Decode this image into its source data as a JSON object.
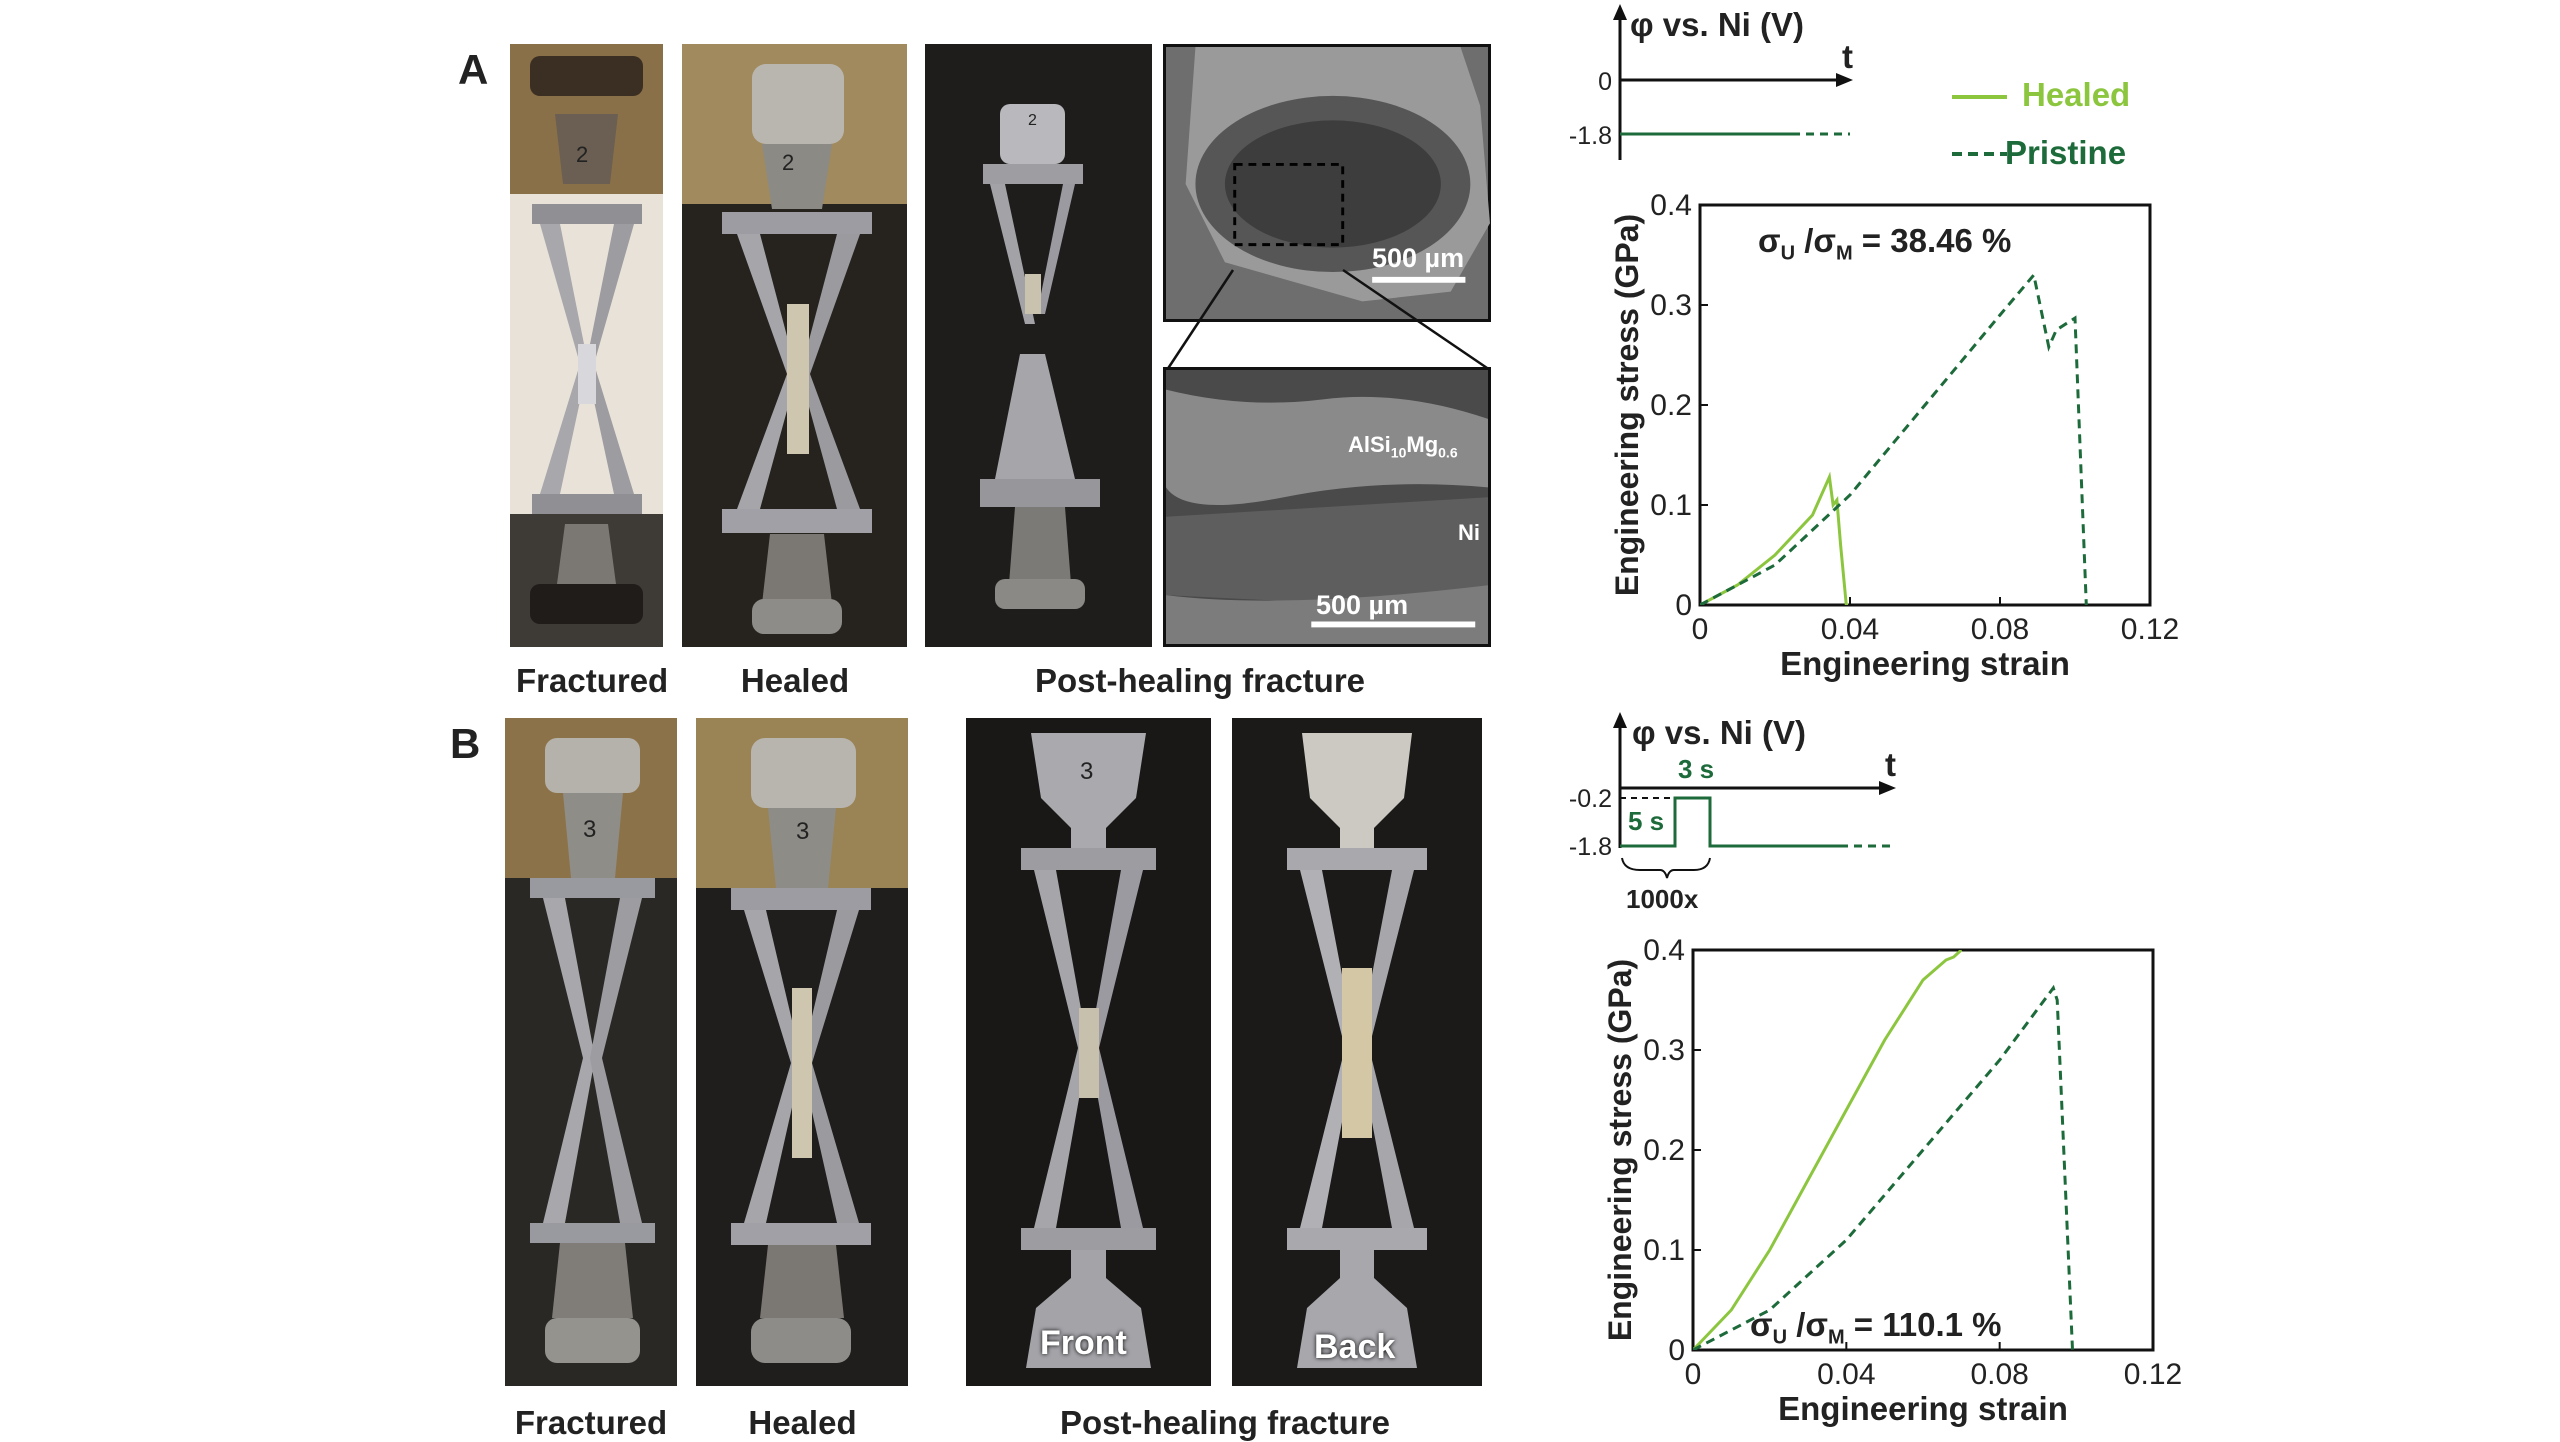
{
  "figure": {
    "panel_a": {
      "letter": "A",
      "captions": [
        "Fractured",
        "Healed",
        "Post-healing fracture"
      ],
      "sem": {
        "top_scale": "500 µm",
        "bottom_scale": "500 µm",
        "label_alloy_main": "AlSi",
        "label_alloy_sub1": "10",
        "label_alloy_mid": "Mg",
        "label_alloy_sub2": "0.6",
        "label_ni": "Ni"
      },
      "specimen_marks": [
        "2",
        "2",
        "2"
      ],
      "waveform": {
        "title": "φ vs. Ni (V)",
        "t_label": "t",
        "levels": [
          "0",
          "-1.8"
        ]
      },
      "legend": {
        "healed": "Healed",
        "pristine": "Pristine"
      },
      "ratio": {
        "sigma": "σ",
        "sub_u": "U",
        "sub_m": "M",
        "value": "= 38.46 %"
      }
    },
    "panel_b": {
      "letter": "B",
      "captions": [
        "Fractured",
        "Healed",
        "Post-healing fracture"
      ],
      "photo_labels": {
        "front": "Front",
        "back": "Back"
      },
      "specimen_marks": [
        "3",
        "3",
        "3"
      ],
      "waveform": {
        "title": "φ vs. Ni (V)",
        "t_label": "t",
        "levels": [
          "-0.2",
          "-1.8"
        ],
        "pulse_high": "3 s",
        "pulse_low": "5 s",
        "repeat": "1000x"
      },
      "ratio": {
        "sigma": "σ",
        "sub_u": "U",
        "sub_m": "M",
        "value": "= 110.1 %"
      }
    },
    "colors": {
      "healed": "#8cc63f",
      "pristine": "#1d6b3a",
      "text": "#222222"
    }
  },
  "chart_data": [
    {
      "type": "line",
      "panel": "A",
      "xlabel": "Engineering strain",
      "ylabel": "Engineering stress (GPa)",
      "xlim": [
        0,
        0.12
      ],
      "ylim": [
        0,
        0.4
      ],
      "xticks": [
        "0",
        "0.04",
        "0.08",
        "0.12"
      ],
      "yticks": [
        "0",
        "0.1",
        "0.2",
        "0.3",
        "0.4"
      ],
      "series": [
        {
          "name": "Healed",
          "style": "solid",
          "color": "#8cc63f",
          "points": [
            [
              0,
              0
            ],
            [
              0.01,
              0.02
            ],
            [
              0.02,
              0.05
            ],
            [
              0.03,
              0.09
            ],
            [
              0.0345,
              0.128
            ],
            [
              0.0355,
              0.1
            ],
            [
              0.0365,
              0.105
            ],
            [
              0.0375,
              0.06
            ],
            [
              0.039,
              0.0
            ],
            [
              0.0395,
              0.0
            ]
          ]
        },
        {
          "name": "Pristine",
          "style": "dashed",
          "color": "#1d6b3a",
          "points": [
            [
              0,
              0
            ],
            [
              0.02,
              0.04
            ],
            [
              0.04,
              0.11
            ],
            [
              0.06,
              0.2
            ],
            [
              0.08,
              0.29
            ],
            [
              0.089,
              0.33
            ],
            [
              0.093,
              0.258
            ],
            [
              0.095,
              0.275
            ],
            [
              0.1,
              0.287
            ],
            [
              0.103,
              0.0
            ]
          ]
        }
      ]
    },
    {
      "type": "line",
      "panel": "B",
      "xlabel": "Engineering strain",
      "ylabel": "Engineering stress (GPa)",
      "xlim": [
        0,
        0.12
      ],
      "ylim": [
        0,
        0.4
      ],
      "xticks": [
        "0",
        "0.04",
        "0.08",
        "0.12"
      ],
      "yticks": [
        "0",
        "0.1",
        "0.2",
        "0.3",
        "0.4"
      ],
      "series": [
        {
          "name": "Healed",
          "style": "solid",
          "color": "#8cc63f",
          "points": [
            [
              0,
              0
            ],
            [
              0.01,
              0.04
            ],
            [
              0.02,
              0.1
            ],
            [
              0.03,
              0.17
            ],
            [
              0.04,
              0.24
            ],
            [
              0.05,
              0.31
            ],
            [
              0.06,
              0.37
            ],
            [
              0.066,
              0.39
            ],
            [
              0.068,
              0.393
            ],
            [
              0.07,
              0.4
            ]
          ]
        },
        {
          "name": "Pristine",
          "style": "dashed",
          "color": "#1d6b3a",
          "points": [
            [
              0,
              0
            ],
            [
              0.02,
              0.04
            ],
            [
              0.04,
              0.11
            ],
            [
              0.06,
              0.2
            ],
            [
              0.08,
              0.29
            ],
            [
              0.094,
              0.362
            ],
            [
              0.095,
              0.35
            ],
            [
              0.099,
              0.0
            ]
          ]
        }
      ]
    }
  ]
}
